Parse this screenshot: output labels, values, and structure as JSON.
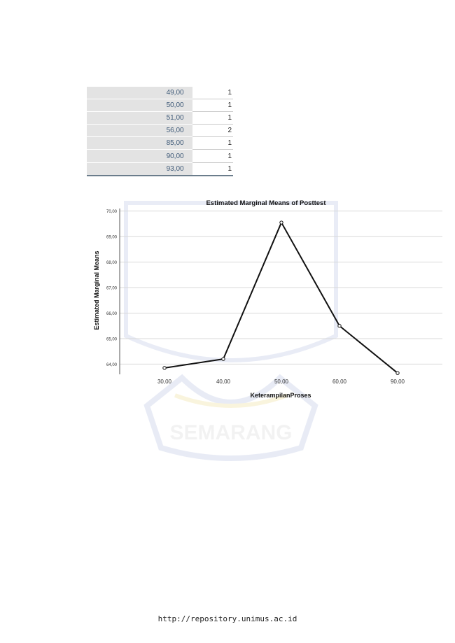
{
  "watermark": {
    "text": "SEMARANG"
  },
  "freq_table": {
    "rows": [
      {
        "value": "49,00",
        "count": "1"
      },
      {
        "value": "50,00",
        "count": "1"
      },
      {
        "value": "51,00",
        "count": "1"
      },
      {
        "value": "56,00",
        "count": "2"
      },
      {
        "value": "85,00",
        "count": "1"
      },
      {
        "value": "90,00",
        "count": "1"
      },
      {
        "value": "93,00",
        "count": "1"
      }
    ]
  },
  "chart_data": {
    "type": "line",
    "title": "Estimated Marginal Means of Posttest",
    "xlabel": "KeterampilanProses",
    "ylabel": "Estimated Marginal Means",
    "categories": [
      "30,00",
      "40,00",
      "50,00",
      "60,00",
      "90,00"
    ],
    "yticks": [
      "70,00",
      "69,00",
      "68,00",
      "67,00",
      "66,00",
      "65,00",
      "64,00"
    ],
    "ylim": [
      63.6,
      70.1
    ],
    "series": [
      {
        "values": [
          63.85,
          64.2,
          69.55,
          65.5,
          63.65
        ]
      }
    ],
    "grid": true,
    "colors": {
      "line": "#111111",
      "grid": "#d8d8d8"
    }
  },
  "footer": {
    "url": "http://repository.unimus.ac.id"
  }
}
